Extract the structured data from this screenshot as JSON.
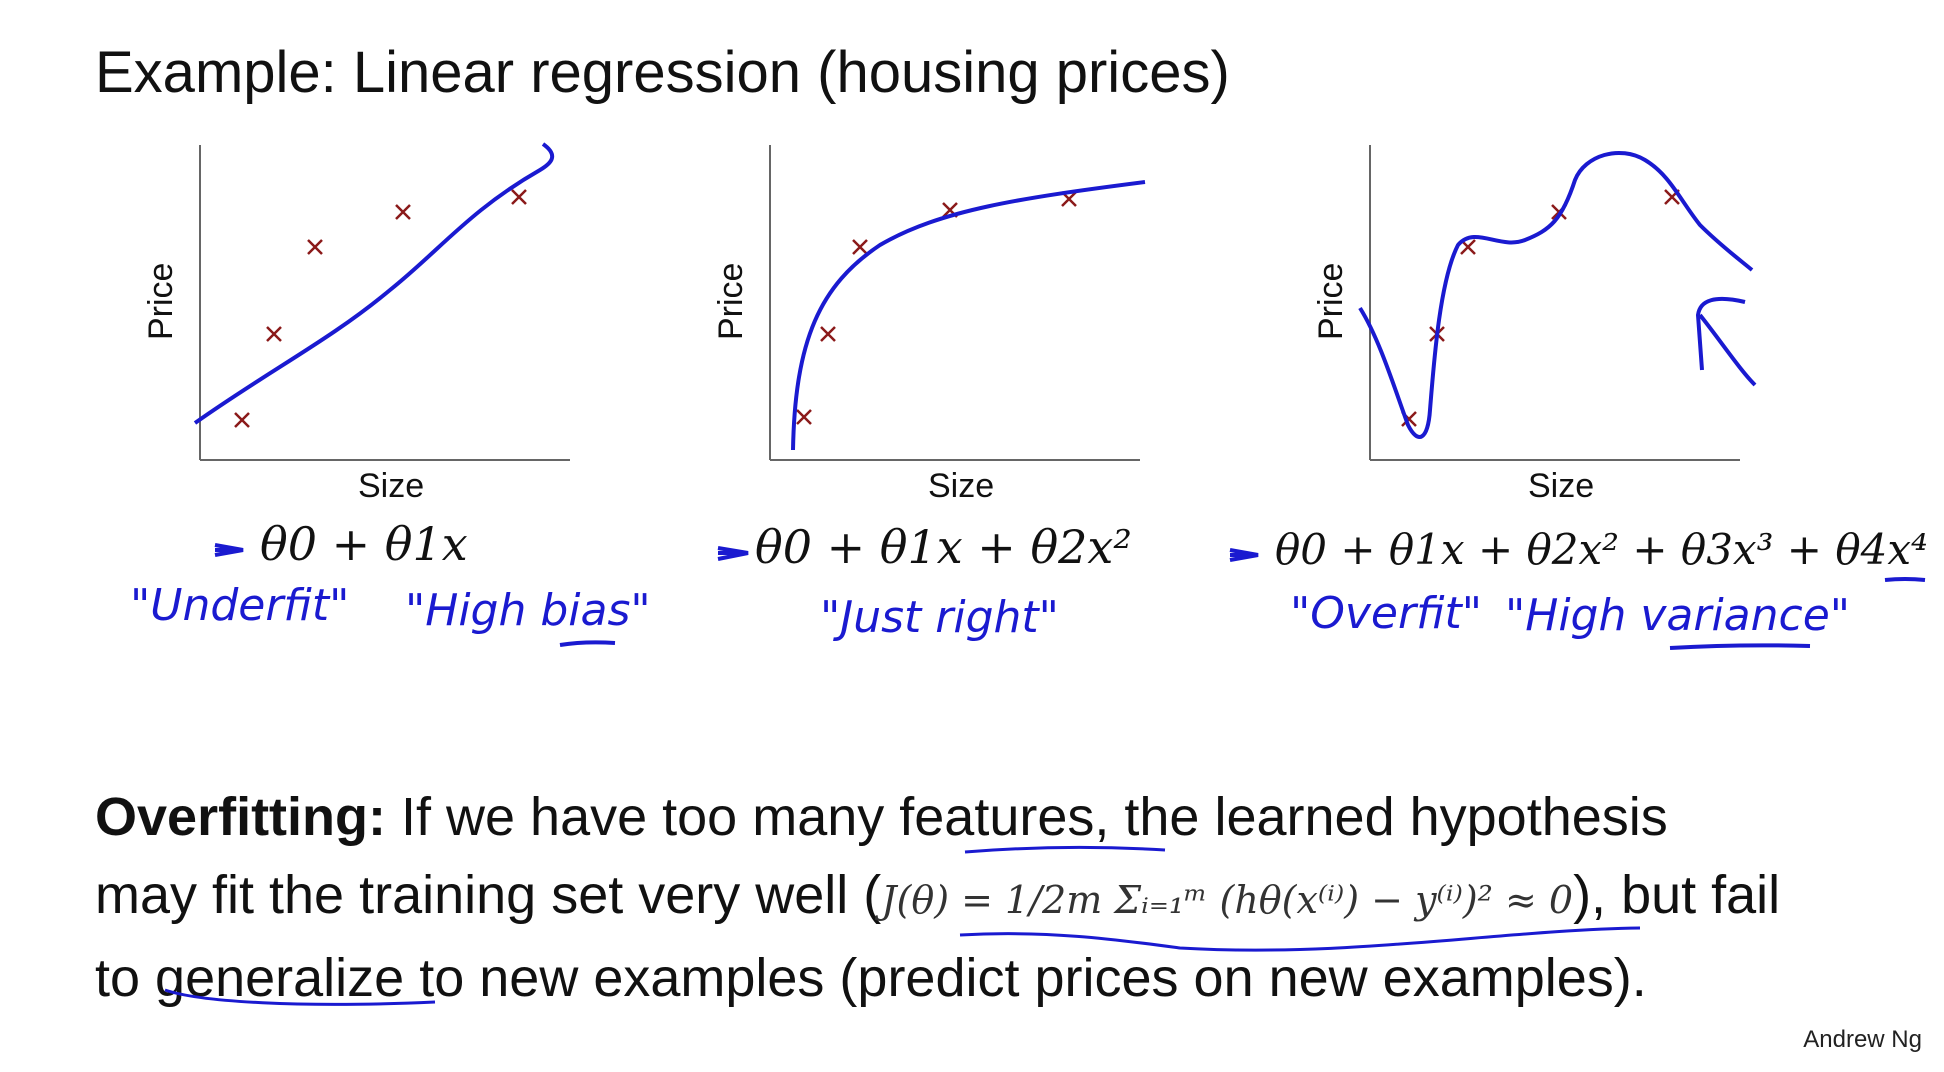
{
  "title": "Example: Linear regression (housing prices)",
  "plots": [
    {
      "ylabel": "Price",
      "xlabel": "Size",
      "formula": "θ0 + θ1x",
      "labels": [
        "\"Underfit\"",
        "\"High bias\""
      ]
    },
    {
      "ylabel": "Price",
      "xlabel": "Size",
      "formula": "θ0 + θ1x + θ2x²",
      "labels": [
        "\"Just right\""
      ]
    },
    {
      "ylabel": "Price",
      "xlabel": "Size",
      "formula": "θ0 + θ1x + θ2x² + θ3x³ + θ4x⁴",
      "labels": [
        "\"Overfit\"",
        "\"High variance\""
      ]
    }
  ],
  "bottom": {
    "bold": "Overfitting:",
    "line1": " If we have too many features, the learned hypothesis",
    "line2a": "may fit the training set very well (",
    "equation": "J(θ) = 1/2m Σᵢ₌₁ᵐ (hθ(x⁽ⁱ⁾) − y⁽ⁱ⁾)² ≈ 0",
    "line2b": "), but fail",
    "line3": "to generalize to new examples (predict prices on new examples)."
  },
  "author": "Andrew Ng",
  "colors": {
    "ink": "#1a1ad0",
    "marker": "#8b1a1a",
    "axis": "#666666"
  }
}
